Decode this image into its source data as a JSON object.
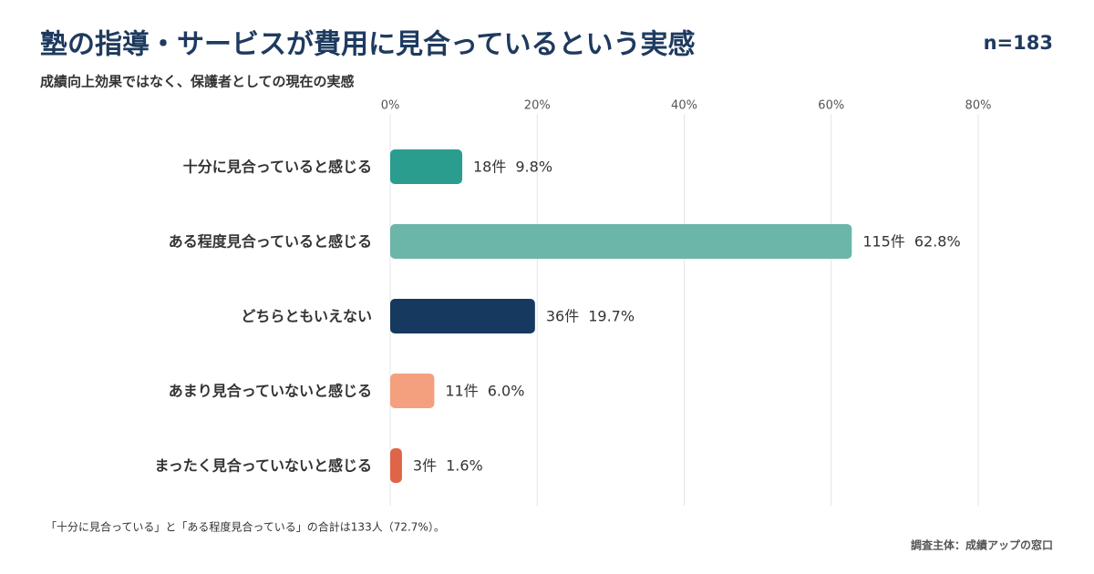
{
  "chart_data": {
    "type": "bar",
    "orientation": "horizontal",
    "title": "塾の指導・サービスが費用に見合っているという実感",
    "subtitle": "成績向上効果ではなく、保護者としての現在の実感",
    "sample_size": "n=183",
    "categories": [
      "十分に見合っていると感じる",
      "ある程度見合っていると感じる",
      "どちらともいえない",
      "あまり見合っていないと感じる",
      "まったく見合っていないと感じる"
    ],
    "values": [
      9.8,
      62.8,
      19.7,
      6.0,
      1.6
    ],
    "value_labels": [
      "9.8%",
      "62.8%",
      "19.7%",
      "6.0%",
      "1.6%"
    ],
    "count_labels": [
      "18件",
      "115件",
      "36件",
      "11件",
      "3件"
    ],
    "colors": [
      "#2a9d8f",
      "#6bb6a8",
      "#163a5f",
      "#f4a07f",
      "#df6548"
    ],
    "xlim": [
      0,
      80
    ],
    "xticks": [
      {
        "value": 0,
        "label": "0%"
      },
      {
        "value": 20,
        "label": "20%"
      },
      {
        "value": 40,
        "label": "40%"
      },
      {
        "value": 60,
        "label": "60%"
      },
      {
        "value": 80,
        "label": "80%"
      }
    ],
    "grid": true,
    "footnote": "「十分に見合っている」と「ある程度見合っている」の合計は133人（72.7%）。",
    "source": "調査主体：成績アップの窓口"
  }
}
